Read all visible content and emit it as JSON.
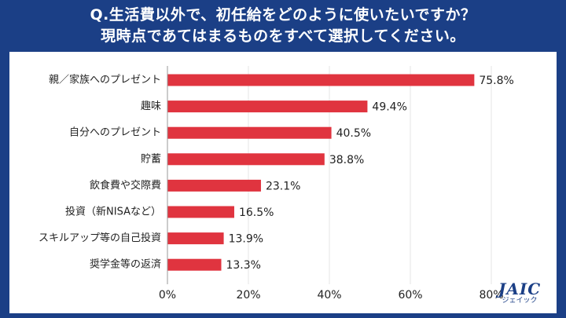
{
  "header": {
    "title_line1": "Q.生活費以外で、初任給をどのように使いたいですか？",
    "title_line2": "現時点であてはまるものをすべて選択してください。"
  },
  "logo": {
    "main": "JAIC",
    "sub": "ジェイック"
  },
  "colors": {
    "background": "#1b3f86",
    "bar": "#e0343f",
    "axis": "#999999",
    "grid": "#e6e6e6"
  },
  "chart_data": {
    "type": "bar",
    "orientation": "horizontal",
    "categories": [
      "親／家族へのプレゼント",
      "趣味",
      "自分へのプレゼント",
      "貯蓄",
      "飲食費や交際費",
      "投資（新NISAなど）",
      "スキルアップ等の自己投資",
      "奨学金等の返済"
    ],
    "values": [
      75.8,
      49.4,
      40.5,
      38.8,
      23.1,
      16.5,
      13.9,
      13.3
    ],
    "value_labels": [
      "75.8%",
      "49.4%",
      "40.5%",
      "38.8%",
      "23.1%",
      "16.5%",
      "13.9%",
      "13.3%"
    ],
    "xlim": [
      0,
      80
    ],
    "xticks": [
      0,
      20,
      40,
      60,
      80
    ],
    "xtick_labels": [
      "0%",
      "20%",
      "40%",
      "60%",
      "80%"
    ],
    "grid": true
  }
}
